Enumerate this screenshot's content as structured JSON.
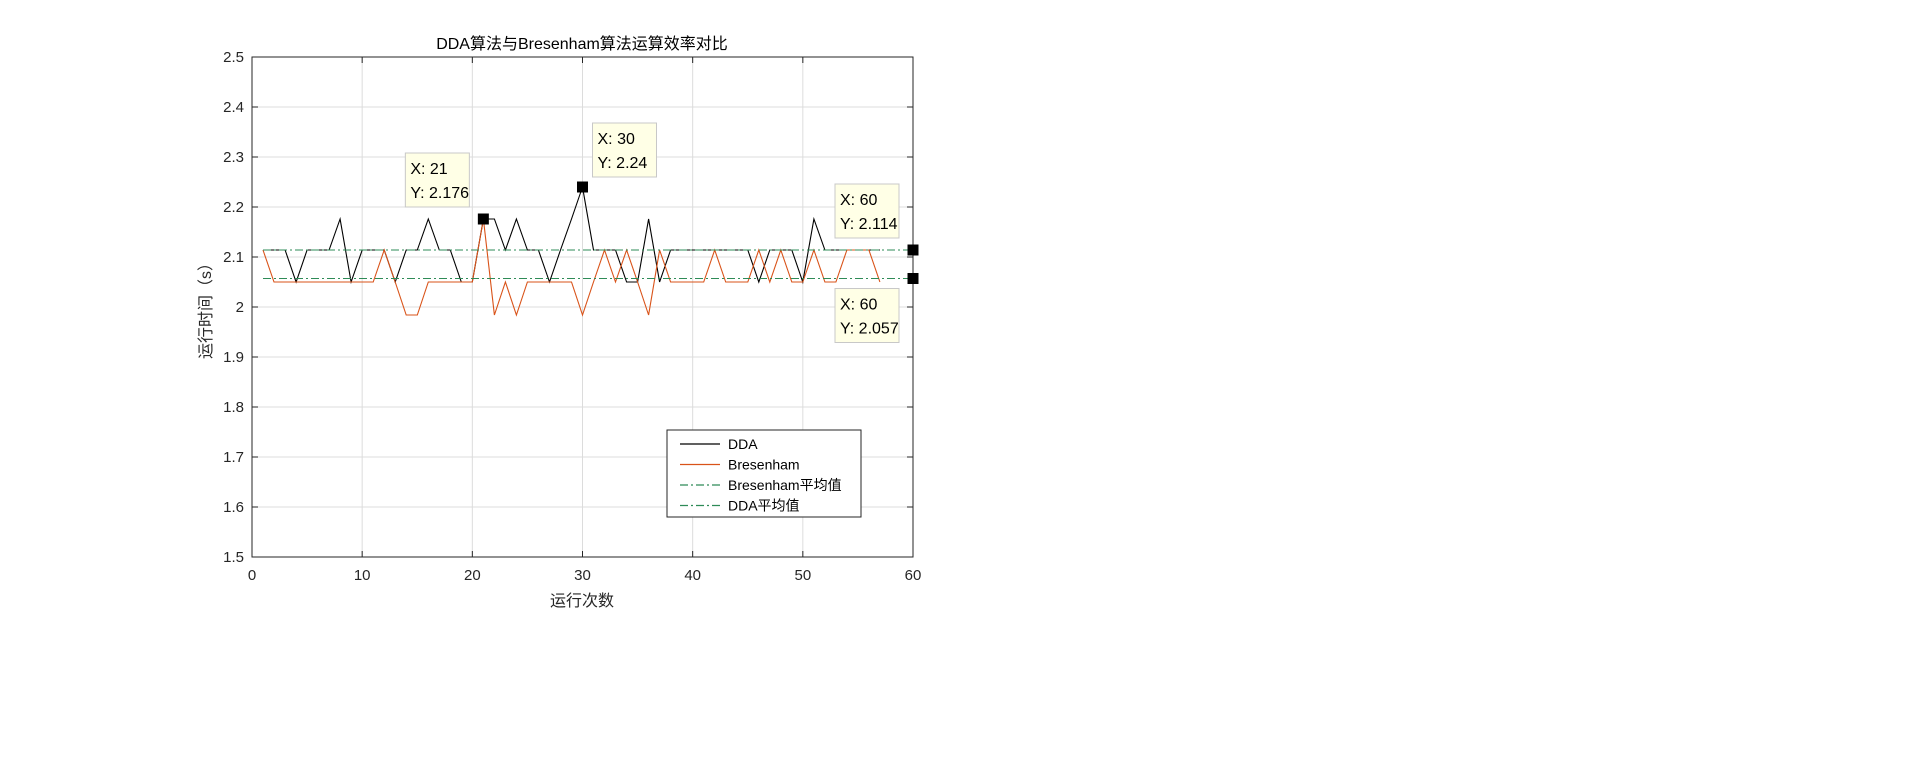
{
  "chart_data": {
    "type": "line",
    "title": "DDA算法与Bresenham算法运算效率对比",
    "xlabel": "运行次数",
    "ylabel": "运行时间（s）",
    "xlim": [
      0,
      60
    ],
    "ylim": [
      1.5,
      2.5
    ],
    "xticks": [
      "0",
      "10",
      "20",
      "30",
      "40",
      "50",
      "60"
    ],
    "yticks": [
      "1.5",
      "1.6",
      "1.7",
      "1.8",
      "1.9",
      "2",
      "2.1",
      "2.2",
      "2.3",
      "2.4",
      "2.5"
    ],
    "grid": true,
    "legend_position": "bottom-right",
    "series": [
      {
        "name": "DDA",
        "color": "#000000",
        "style": "solid",
        "x": [
          1,
          2,
          3,
          4,
          5,
          6,
          7,
          8,
          9,
          10,
          11,
          12,
          13,
          14,
          15,
          16,
          17,
          18,
          19,
          20,
          21,
          22,
          23,
          24,
          25,
          26,
          27,
          28,
          29,
          30,
          31,
          32,
          33,
          34,
          35,
          36,
          37,
          38,
          39,
          40,
          41,
          42,
          43,
          44,
          45,
          46,
          47,
          48,
          49,
          50,
          51,
          52,
          53,
          54,
          55,
          56,
          57
        ],
        "y": [
          2.114,
          2.114,
          2.114,
          2.05,
          2.114,
          2.114,
          2.114,
          2.176,
          2.05,
          2.114,
          2.114,
          2.114,
          2.05,
          2.114,
          2.114,
          2.176,
          2.114,
          2.114,
          2.05,
          2.05,
          2.176,
          2.176,
          2.114,
          2.176,
          2.114,
          2.114,
          2.05,
          2.114,
          2.176,
          2.24,
          2.114,
          2.114,
          2.114,
          2.05,
          2.05,
          2.176,
          2.05,
          2.114,
          2.114,
          2.114,
          2.114,
          2.114,
          2.114,
          2.114,
          2.114,
          2.05,
          2.114,
          2.114,
          2.114,
          2.05,
          2.176,
          2.114,
          2.114,
          2.114,
          2.114,
          2.114,
          2.114
        ]
      },
      {
        "name": "Bresenham",
        "color": "#D95319",
        "style": "solid",
        "x": [
          1,
          2,
          3,
          4,
          5,
          6,
          7,
          8,
          9,
          10,
          11,
          12,
          13,
          14,
          15,
          16,
          17,
          18,
          19,
          20,
          21,
          22,
          23,
          24,
          25,
          26,
          27,
          28,
          29,
          30,
          31,
          32,
          33,
          34,
          35,
          36,
          37,
          38,
          39,
          40,
          41,
          42,
          43,
          44,
          45,
          46,
          47,
          48,
          49,
          50,
          51,
          52,
          53,
          54,
          55,
          56,
          57
        ],
        "y": [
          2.114,
          2.05,
          2.05,
          2.05,
          2.05,
          2.05,
          2.05,
          2.05,
          2.05,
          2.05,
          2.05,
          2.114,
          2.05,
          1.984,
          1.984,
          2.05,
          2.05,
          2.05,
          2.05,
          2.05,
          2.176,
          1.984,
          2.05,
          1.984,
          2.05,
          2.05,
          2.05,
          2.05,
          2.05,
          1.984,
          2.05,
          2.114,
          2.05,
          2.114,
          2.05,
          1.984,
          2.114,
          2.05,
          2.05,
          2.05,
          2.05,
          2.114,
          2.05,
          2.05,
          2.05,
          2.114,
          2.05,
          2.114,
          2.05,
          2.05,
          2.114,
          2.05,
          2.05,
          2.114,
          2.114,
          2.114,
          2.05
        ]
      },
      {
        "name": "Bresenham平均值",
        "color": "#2E8B57",
        "style": "dashdot",
        "x": [
          1,
          60
        ],
        "y": [
          2.057,
          2.057
        ]
      },
      {
        "name": "DDA平均值",
        "color": "#2E8B57",
        "style": "dashdot",
        "x": [
          1,
          60
        ],
        "y": [
          2.114,
          2.114
        ]
      }
    ],
    "datatips": [
      {
        "x": 21,
        "y": 2.176,
        "line1": "X: 21",
        "line2": "Y: 2.176",
        "anchor": "upper-left"
      },
      {
        "x": 30,
        "y": 2.24,
        "line1": "X: 30",
        "line2": "Y: 2.24",
        "anchor": "upper-right"
      },
      {
        "x": 60,
        "y": 2.114,
        "line1": "X: 60",
        "line2": "Y: 2.114",
        "anchor": "upper-left"
      },
      {
        "x": 60,
        "y": 2.057,
        "line1": "X: 60",
        "line2": "Y: 2.057",
        "anchor": "lower-left"
      }
    ]
  }
}
